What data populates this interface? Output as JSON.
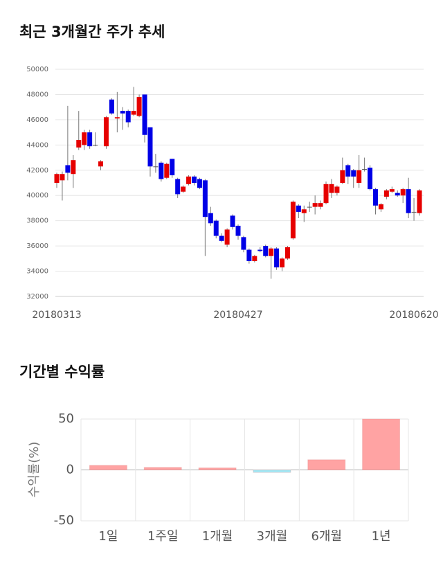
{
  "chart_data": [
    {
      "type": "candlestick",
      "title": "최근 3개월간 주가 추세",
      "categories": [
        "20180313",
        null,
        null,
        null,
        null,
        null,
        null,
        null,
        null,
        null,
        null,
        null,
        null,
        null,
        null,
        null,
        null,
        null,
        null,
        null,
        null,
        null,
        null,
        null,
        null,
        null,
        null,
        null,
        null,
        null,
        null,
        null,
        null,
        "20180427",
        null,
        null,
        null,
        null,
        null,
        null,
        null,
        null,
        null,
        null,
        null,
        null,
        null,
        null,
        null,
        null,
        null,
        null,
        null,
        null,
        null,
        null,
        null,
        null,
        null,
        null,
        null,
        null,
        null,
        null,
        null,
        "20180620",
        null
      ],
      "open": [
        41000,
        41200,
        42400,
        41700,
        43800,
        44000,
        45000,
        44000,
        42300,
        43900,
        47600,
        46100,
        46700,
        46700,
        46400,
        46300,
        48000,
        45400,
        42300,
        42600,
        41400,
        42900,
        41300,
        40300,
        40900,
        41500,
        41300,
        41200,
        38600,
        38000,
        36800,
        36100,
        38400,
        37600,
        36700,
        35700,
        34800,
        35700,
        36000,
        35200,
        35800,
        34300,
        35000,
        36600,
        39200,
        38600,
        39100,
        39100,
        39100,
        39400,
        40200,
        40200,
        41000,
        42400,
        42000,
        41000,
        42100,
        42200,
        40500,
        38900,
        39900,
        40300,
        40200,
        40000,
        40500,
        38700,
        38600
      ],
      "high": [
        41800,
        41900,
        47100,
        43200,
        46700,
        45200,
        45200,
        45000,
        42800,
        46300,
        47700,
        48200,
        47000,
        46800,
        48600,
        48000,
        48000,
        45400,
        43300,
        42700,
        42600,
        42900,
        41400,
        40800,
        41600,
        41600,
        41400,
        41300,
        39100,
        38100,
        37000,
        37400,
        38500,
        37700,
        36800,
        35800,
        35300,
        35900,
        36100,
        35900,
        35900,
        35100,
        36000,
        39600,
        39300,
        39200,
        39500,
        40000,
        39600,
        41100,
        41300,
        40800,
        43000,
        42500,
        42100,
        43200,
        43000,
        42400,
        40600,
        39400,
        40500,
        40700,
        40400,
        40600,
        41400,
        39800,
        40500
      ],
      "low": [
        40600,
        39600,
        41200,
        40600,
        43600,
        43600,
        43700,
        43900,
        42000,
        43700,
        46400,
        45000,
        45200,
        45400,
        46300,
        46200,
        44200,
        41500,
        41800,
        41100,
        41300,
        41400,
        39800,
        40200,
        40800,
        40800,
        40500,
        35200,
        37600,
        36600,
        36300,
        35900,
        37300,
        36500,
        35500,
        34600,
        34700,
        35500,
        35100,
        33400,
        34100,
        34000,
        34900,
        36500,
        38200,
        37900,
        38700,
        38500,
        38900,
        39300,
        39800,
        40000,
        40900,
        40900,
        40600,
        40600,
        41900,
        40400,
        38500,
        38700,
        39700,
        40200,
        39900,
        39400,
        38200,
        38000,
        38400
      ],
      "close": [
        41700,
        41700,
        41800,
        42800,
        44400,
        45000,
        43900,
        44000,
        42700,
        46200,
        46500,
        46200,
        46500,
        45800,
        46700,
        47800,
        44800,
        42300,
        42300,
        41300,
        42500,
        41600,
        40100,
        40700,
        41500,
        41000,
        40600,
        38300,
        37800,
        36800,
        36400,
        37300,
        37500,
        36800,
        35700,
        34800,
        35200,
        35600,
        35200,
        35800,
        34300,
        35000,
        35900,
        39500,
        38700,
        38900,
        39100,
        39400,
        39400,
        40900,
        40900,
        40700,
        42000,
        41500,
        41500,
        42000,
        42100,
        40500,
        39200,
        39300,
        40400,
        40500,
        40000,
        40500,
        38600,
        38700,
        40400
      ],
      "up_color": "#e60000",
      "down_color": "#0000e6",
      "ylim": [
        32000,
        50000
      ],
      "yticks": [
        32000,
        34000,
        36000,
        38000,
        40000,
        42000,
        44000,
        46000,
        48000,
        50000
      ],
      "grid": true
    },
    {
      "type": "bar",
      "title": "기간별 수익률",
      "ylabel": "수익률(%)",
      "categories": [
        "1일",
        "1주일",
        "1개월",
        "3개월",
        "6개월",
        "1년"
      ],
      "values": [
        4.5,
        2.5,
        2,
        -2.5,
        10,
        50
      ],
      "colors": [
        "#ffa3a3",
        "#ffa3a3",
        "#ffa3a3",
        "#a3e8f5",
        "#ffa3a3",
        "#ffa3a3"
      ],
      "ylim": [
        -50,
        50
      ],
      "yticks": [
        -50,
        0,
        50
      ],
      "grid": true
    }
  ]
}
